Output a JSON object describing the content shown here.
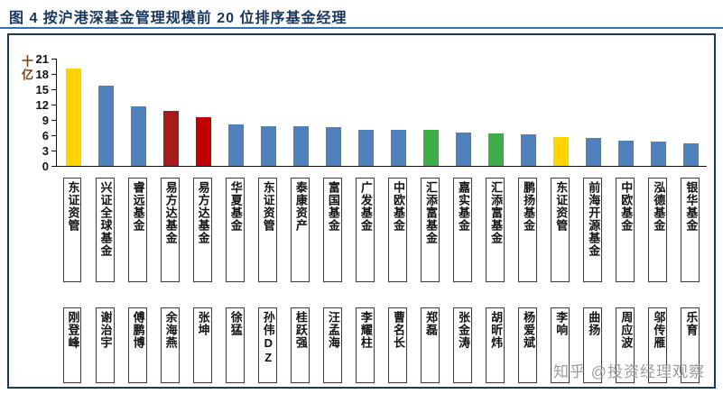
{
  "figure": {
    "title": "图 4 按沪港深基金管理规模前 20 位排序基金经理"
  },
  "watermark": "知乎 @投资经理观察",
  "colors": {
    "title": "#17365D",
    "title_underline": "#2E74B5",
    "frame_border": "#1A3A5C",
    "ylabel": "#843C0C",
    "watermark": "#9B9B9B",
    "bar_blue": "#4E80BC",
    "bar_yellow": "#FFD401",
    "bar_dark_red": "#A61C1C",
    "bar_red": "#C00000",
    "bar_green": "#3FAE49"
  },
  "chart_data": {
    "type": "bar",
    "title": "图 4 按沪港深基金管理规模前 20 位排序基金经理",
    "ylabel": "十亿",
    "xlabel": "",
    "ylim": [
      0,
      21
    ],
    "yticks": [
      0,
      3,
      6,
      9,
      12,
      15,
      18,
      21
    ],
    "grid": false,
    "legend": false,
    "categories": [
      {
        "company": "东证资管",
        "manager": "刚登峰"
      },
      {
        "company": "兴证全球基金",
        "manager": "谢治宇"
      },
      {
        "company": "睿远基金",
        "manager": "傅鹏博"
      },
      {
        "company": "易方达基金",
        "manager": "余海燕"
      },
      {
        "company": "易方达基金",
        "manager": "张坤"
      },
      {
        "company": "华夏基金",
        "manager": "徐猛"
      },
      {
        "company": "东证资管",
        "manager": "孙伟DZ"
      },
      {
        "company": "泰康资产",
        "manager": "桂跃强"
      },
      {
        "company": "富国基金",
        "manager": "汪孟海"
      },
      {
        "company": "广发基金",
        "manager": "李耀柱"
      },
      {
        "company": "中欧基金",
        "manager": "曹名长"
      },
      {
        "company": "汇添富基金",
        "manager": "郑磊"
      },
      {
        "company": "嘉实基金",
        "manager": "张金涛"
      },
      {
        "company": "汇添富基金",
        "manager": "胡昕炜"
      },
      {
        "company": "鹏扬基金",
        "manager": "杨爱斌"
      },
      {
        "company": "东证资管",
        "manager": "李响"
      },
      {
        "company": "前海开源基金",
        "manager": "曲扬"
      },
      {
        "company": "中欧基金",
        "manager": "周应波"
      },
      {
        "company": "泓德基金",
        "manager": "邬传雁"
      },
      {
        "company": "银华基金",
        "manager": "乐育"
      }
    ],
    "values": [
      19.0,
      15.7,
      11.7,
      10.7,
      9.6,
      8.1,
      7.8,
      7.7,
      7.6,
      7.1,
      7.0,
      7.0,
      6.6,
      6.4,
      6.2,
      5.6,
      5.4,
      5.0,
      4.8,
      4.5
    ],
    "bar_colors": [
      "#FFD401",
      "#4E80BC",
      "#4E80BC",
      "#A61C1C",
      "#C00000",
      "#4E80BC",
      "#4E80BC",
      "#4E80BC",
      "#4E80BC",
      "#4E80BC",
      "#4E80BC",
      "#3FAE49",
      "#4E80BC",
      "#3FAE49",
      "#4E80BC",
      "#FFD401",
      "#4E80BC",
      "#4E80BC",
      "#4E80BC",
      "#4E80BC"
    ]
  }
}
